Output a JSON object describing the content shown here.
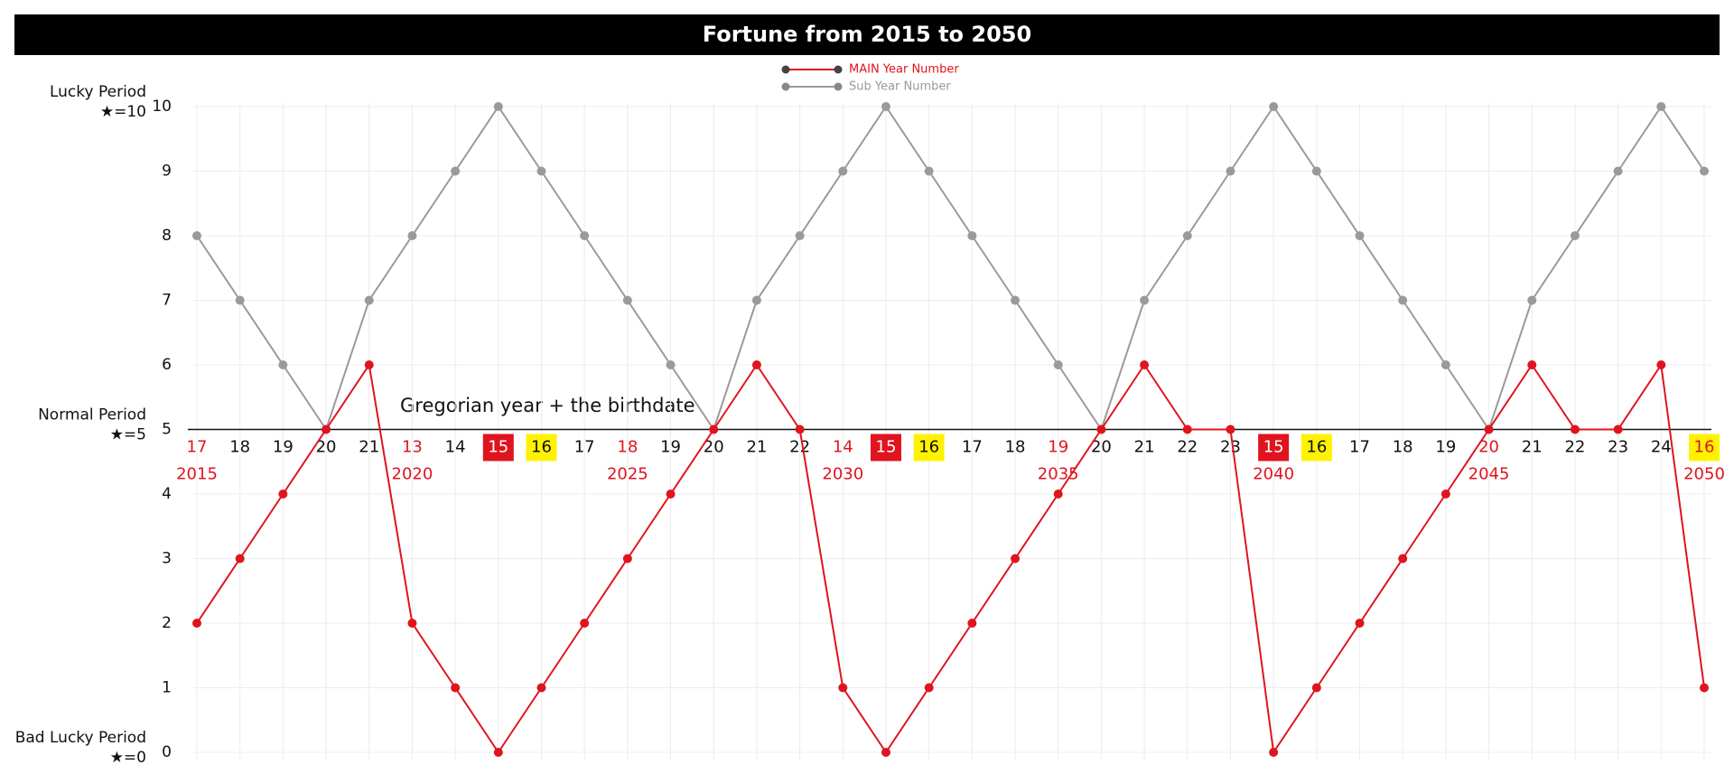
{
  "chart_data": {
    "type": "line",
    "title": "Fortune from 2015 to 2050",
    "annotation": "Gregorian year + the birthdate",
    "period_labels": [
      {
        "name": "Lucky Period",
        "star": "★=10",
        "value": 10
      },
      {
        "name": "Normal Period",
        "star": "★=5",
        "value": 5
      },
      {
        "name": "Bad Lucky Period",
        "star": "★=0",
        "value": 0
      }
    ],
    "categories": [
      "2015",
      null,
      null,
      null,
      null,
      "2020",
      null,
      null,
      null,
      null,
      "2025",
      null,
      null,
      null,
      null,
      "2030",
      null,
      null,
      null,
      null,
      "2035",
      null,
      null,
      null,
      null,
      "2040",
      null,
      null,
      null,
      null,
      "2045",
      null,
      null,
      null,
      null,
      "2050"
    ],
    "year_numbers": [
      17,
      18,
      19,
      20,
      21,
      13,
      14,
      15,
      16,
      17,
      18,
      19,
      20,
      21,
      22,
      14,
      15,
      16,
      17,
      18,
      19,
      20,
      21,
      22,
      23,
      15,
      16,
      17,
      18,
      19,
      20,
      21,
      22,
      23,
      24,
      16
    ],
    "year_number_styles": [
      "red",
      "plain",
      "plain",
      "plain",
      "plain",
      "red",
      "plain",
      "redbox",
      "yellowbox",
      "plain",
      "red",
      "plain",
      "plain",
      "plain",
      "plain",
      "red",
      "redbox",
      "yellowbox",
      "plain",
      "plain",
      "red",
      "plain",
      "plain",
      "plain",
      "plain",
      "redbox",
      "yellowbox",
      "plain",
      "plain",
      "plain",
      "red",
      "plain",
      "plain",
      "plain",
      "plain",
      "yellowbox-red"
    ],
    "series": [
      {
        "name": "MAIN Year Number",
        "color": "#e0141e",
        "values": [
          2,
          3,
          4,
          5,
          6,
          2,
          1,
          0,
          1,
          2,
          3,
          4,
          5,
          6,
          5,
          1,
          0,
          1,
          2,
          3,
          4,
          5,
          6,
          5,
          5,
          0,
          1,
          2,
          3,
          4,
          5,
          6,
          5,
          5,
          6,
          1
        ]
      },
      {
        "name": "Sub Year Number",
        "color": "#9a9a9a",
        "values": [
          8,
          7,
          6,
          5,
          7,
          8,
          9,
          10,
          9,
          8,
          7,
          6,
          5,
          7,
          8,
          9,
          10,
          9,
          8,
          7,
          6,
          5,
          7,
          8,
          9,
          10,
          9,
          8,
          7,
          6,
          5,
          7,
          8,
          9,
          10,
          9
        ]
      }
    ],
    "ylim": [
      0,
      10
    ],
    "yticks": [
      0,
      1,
      2,
      3,
      4,
      5,
      6,
      7,
      8,
      9,
      10
    ],
    "baseline": 5,
    "grid": true
  }
}
